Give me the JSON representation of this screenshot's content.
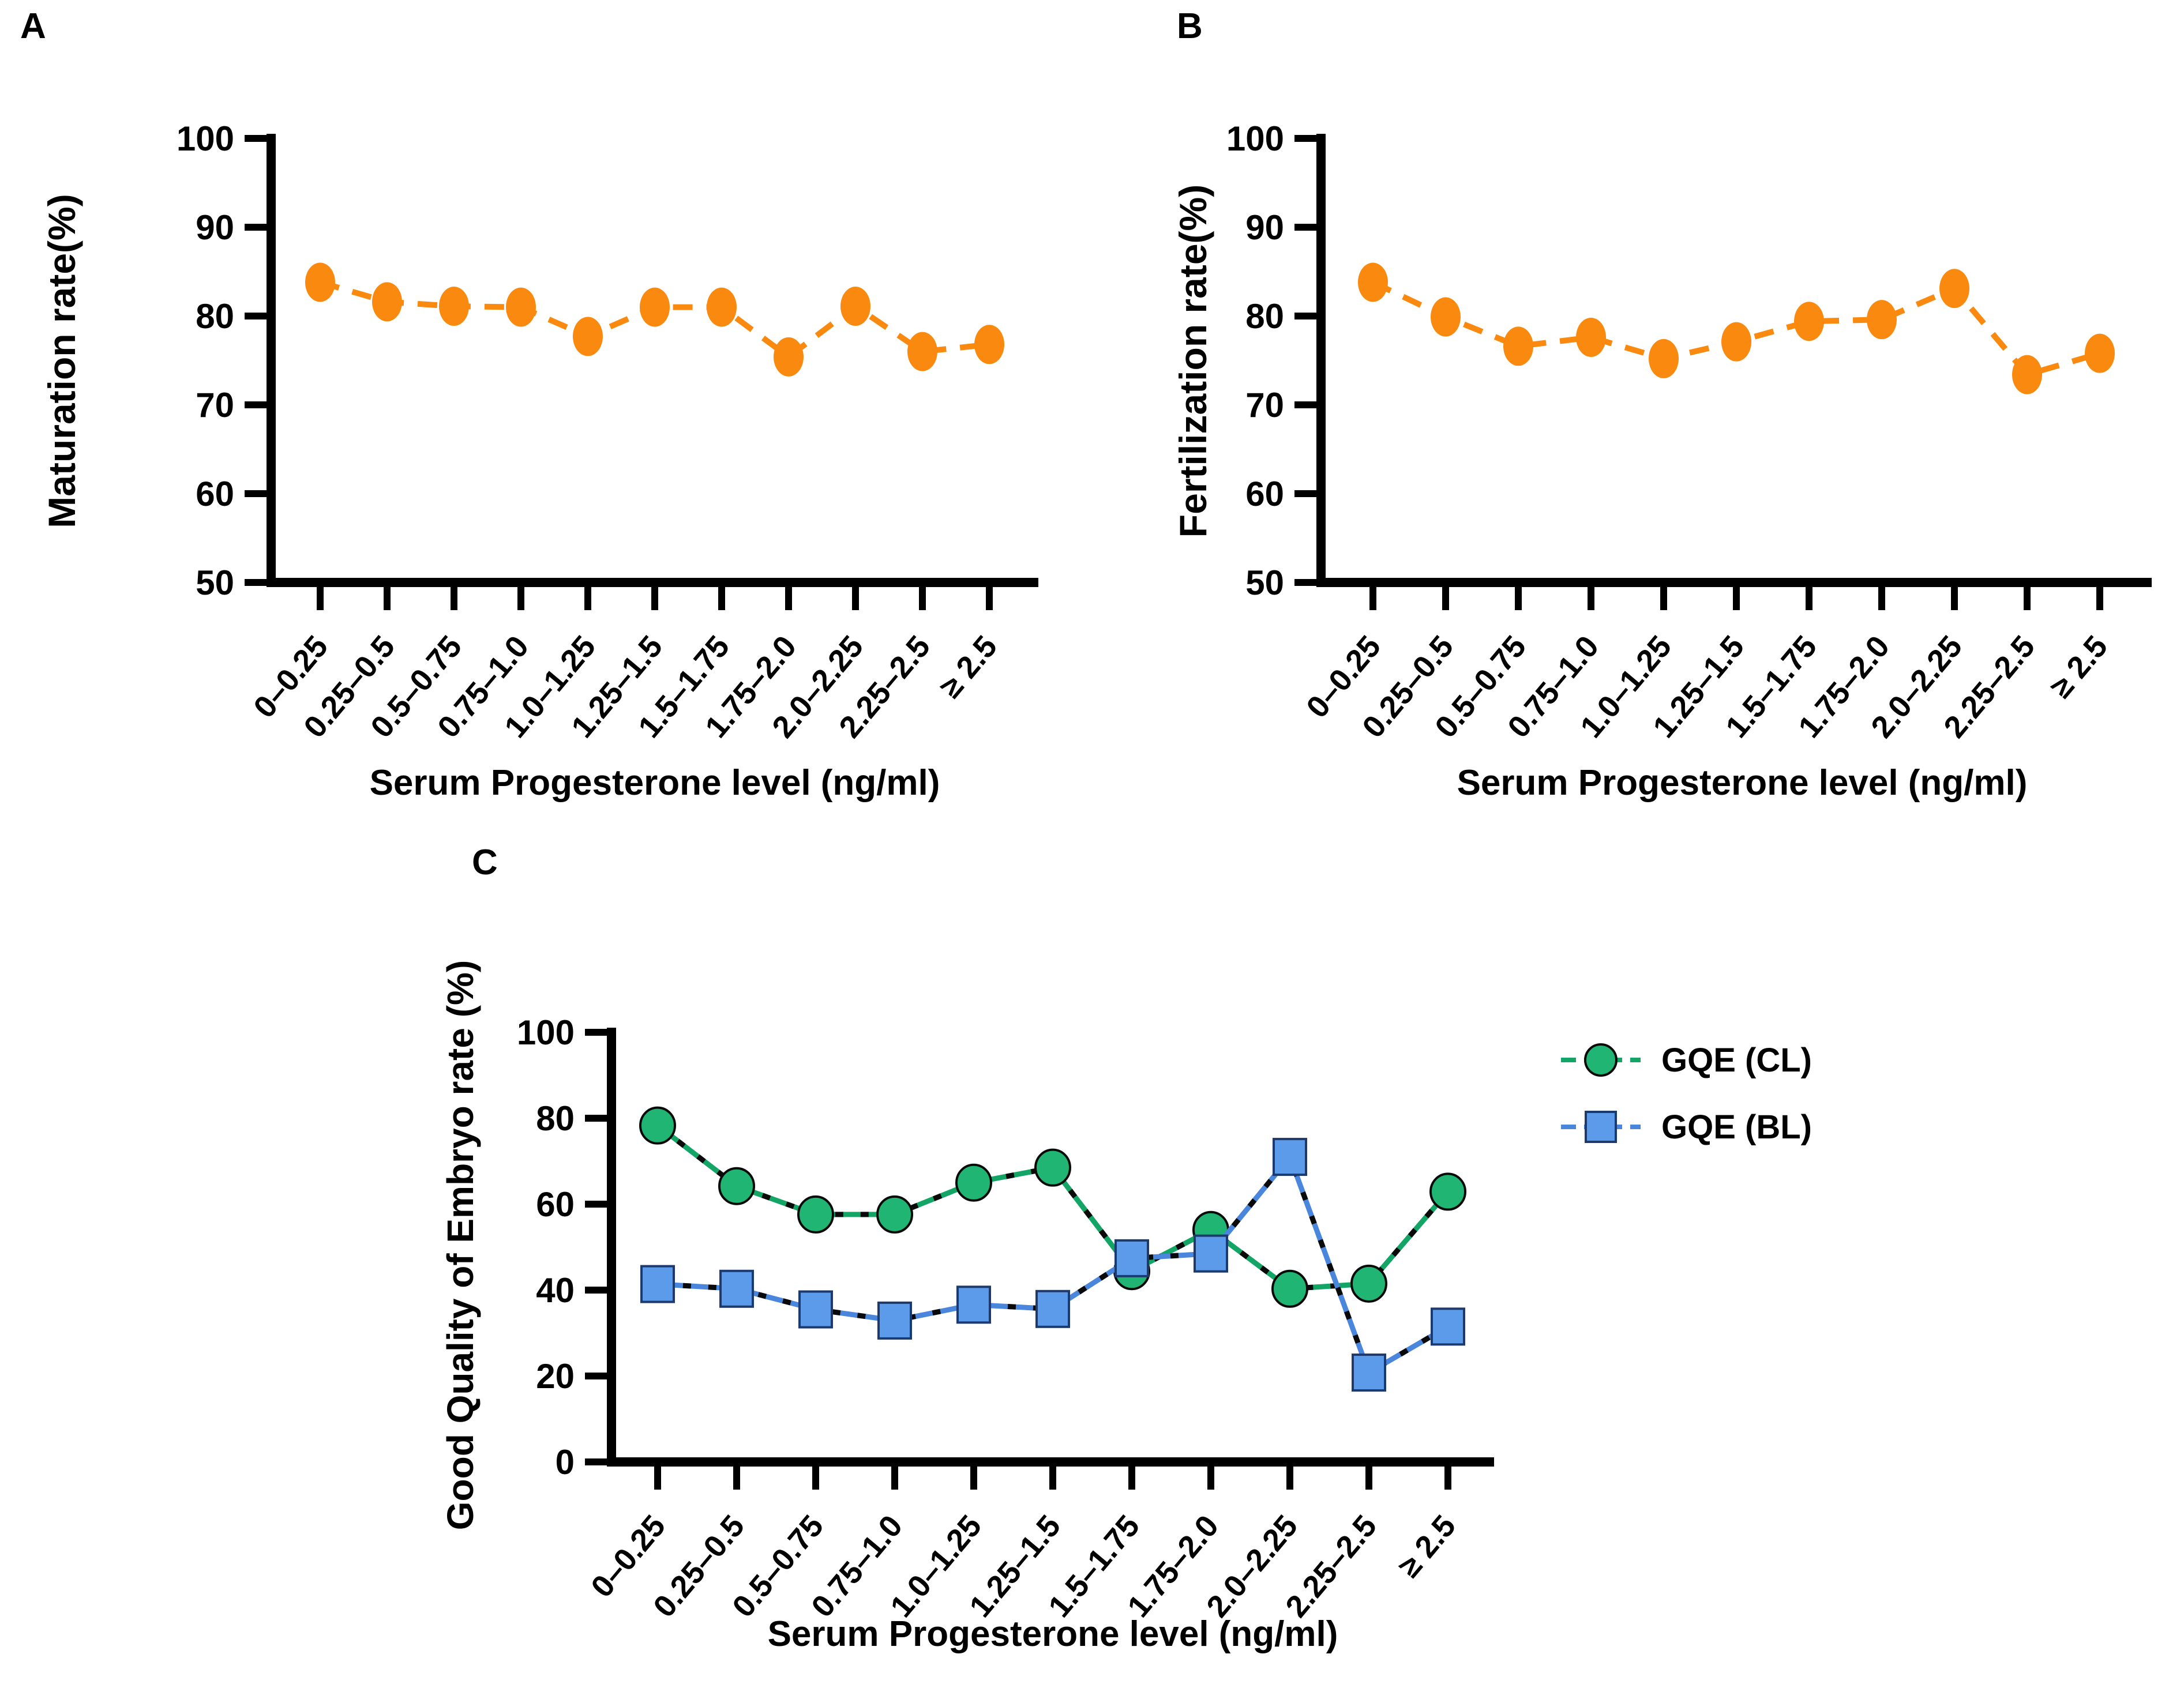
{
  "figure": {
    "x_axis_title": "Serum Progesterone level (ng/ml)",
    "categories": [
      "0–0.25",
      "0.25–0.5",
      "0.5–0.75",
      "0.75–1.0",
      "1.0–1.25",
      "1.25–1.5",
      "1.5–1.75",
      "1.75–2.0",
      "2.0–2.25",
      "2.25–2.5",
      "≥ 2.5"
    ]
  },
  "chart_data": [
    {
      "type": "line",
      "panel_label": "A",
      "xlabel": "Serum Progesterone level (ng/ml)",
      "ylabel": "Maturation rate(%)",
      "ylim": [
        50,
        100
      ],
      "yticks": [
        50,
        60,
        70,
        80,
        90,
        100
      ],
      "grid": false,
      "legend_position": "none",
      "categories": [
        "0–0.25",
        "0.25–0.5",
        "0.5–0.75",
        "0.75–1.0",
        "1.0–1.25",
        "1.25–1.5",
        "1.5–1.75",
        "1.75–2.0",
        "2.0–2.25",
        "2.25–2.5",
        "≥ 2.5"
      ],
      "series": [
        {
          "name": "Maturation rate",
          "marker": "circle",
          "color": "#F98A0F",
          "marker_fill": "#F98A0F",
          "marker_edge": "none",
          "values": [
            83.8,
            81.6,
            81.1,
            81.0,
            77.7,
            81.0,
            81.0,
            75.4,
            81.1,
            76.0,
            76.8
          ]
        }
      ]
    },
    {
      "type": "line",
      "panel_label": "B",
      "xlabel": "Serum Progesterone level (ng/ml)",
      "ylabel": "Fertilization rate(%)",
      "ylim": [
        50,
        100
      ],
      "yticks": [
        50,
        60,
        70,
        80,
        90,
        100
      ],
      "grid": false,
      "legend_position": "none",
      "categories": [
        "0–0.25",
        "0.25–0.5",
        "0.5–0.75",
        "0.75–1.0",
        "1.0–1.25",
        "1.25–1.5",
        "1.5–1.75",
        "1.75–2.0",
        "2.0–2.25",
        "2.25–2.5",
        "≥ 2.5"
      ],
      "series": [
        {
          "name": "Fertilization rate",
          "marker": "circle",
          "color": "#F98A0F",
          "marker_fill": "#F98A0F",
          "marker_edge": "none",
          "values": [
            83.8,
            79.9,
            76.6,
            77.6,
            75.2,
            77.1,
            79.4,
            79.6,
            83.1,
            73.4,
            75.8
          ]
        }
      ]
    },
    {
      "type": "line",
      "panel_label": "C",
      "xlabel": "Serum Progesterone level (ng/ml)",
      "ylabel": "Good Quality of Embryo rate (%)",
      "ylim": [
        0,
        100
      ],
      "yticks": [
        0,
        20,
        40,
        60,
        80,
        100
      ],
      "grid": false,
      "legend_position": "right",
      "categories": [
        "0–0.25",
        "0.25–0.5",
        "0.5–0.75",
        "0.75–1.0",
        "1.0–1.25",
        "1.25–1.5",
        "1.5–1.75",
        "1.75–2.0",
        "2.0–2.25",
        "2.25–2.5",
        "≥ 2.5"
      ],
      "series": [
        {
          "name": "GQE (CL)",
          "marker": "circle",
          "color": "#12A566",
          "marker_fill": "#21B573",
          "marker_edge": "#0A0A0A",
          "values": [
            78.3,
            64.2,
            57.6,
            57.6,
            65.0,
            68.5,
            44.4,
            54.0,
            40.3,
            41.5,
            62.9
          ]
        },
        {
          "name": "GQE (BL)",
          "marker": "square",
          "color": "#4A86DB",
          "marker_fill": "#5B9BEA",
          "marker_edge": "#1D3A6E",
          "values": [
            41.4,
            40.3,
            35.5,
            32.9,
            36.6,
            35.6,
            47.4,
            48.5,
            71.0,
            20.8,
            31.5
          ]
        }
      ]
    }
  ]
}
